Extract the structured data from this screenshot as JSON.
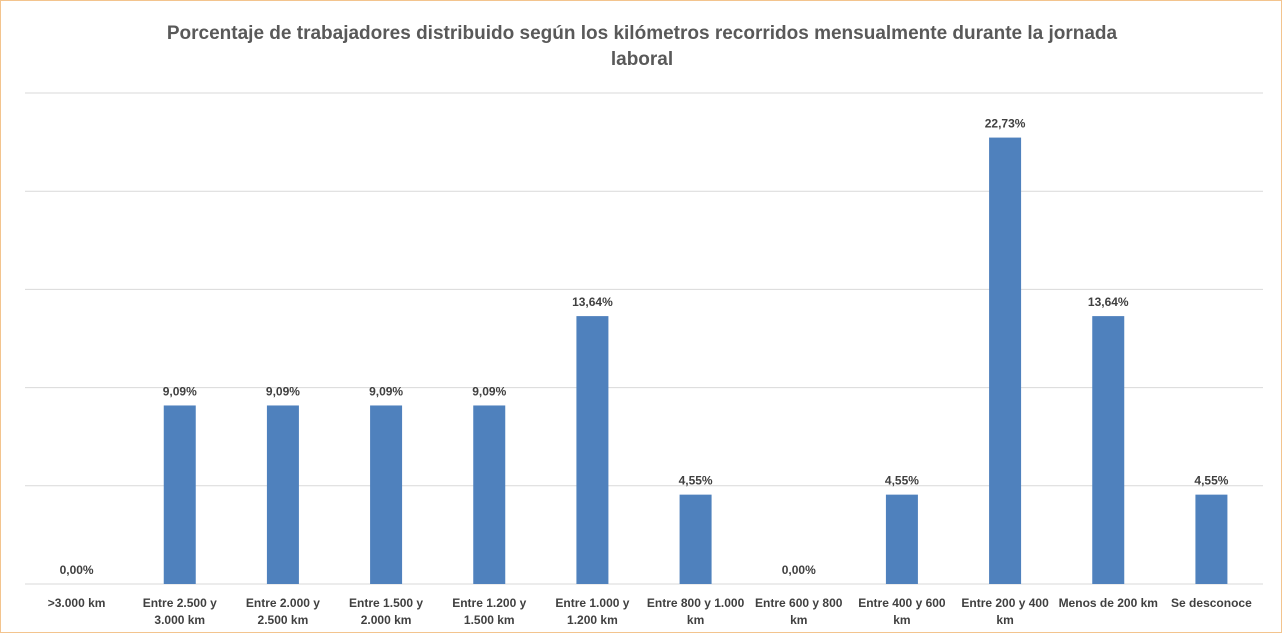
{
  "chart_data": {
    "type": "bar",
    "title": "Porcentaje de trabajadores distribuido según los kilómetros recorridos mensualmente durante la jornada laboral",
    "categories": [
      ">3.000 km",
      "Entre 2.500 y 3.000 km",
      "Entre 2.000 y 2.500 km",
      "Entre 1.500 y 2.000 km",
      "Entre 1.200 y 1.500 km",
      "Entre 1.000 y 1.200 km",
      "Entre 800 y 1.000 km",
      "Entre 600 y 800 km",
      "Entre 400 y 600 km",
      "Entre 200 y 400 km",
      "Menos de 200 km",
      "Se desconoce"
    ],
    "values": [
      0,
      9.09,
      9.09,
      9.09,
      9.09,
      13.64,
      4.55,
      0,
      4.55,
      22.73,
      13.64,
      4.55
    ],
    "value_labels": [
      "0,00%",
      "9,09%",
      "9,09%",
      "9,09%",
      "9,09%",
      "13,64%",
      "4,55%",
      "0,00%",
      "4,55%",
      "22,73%",
      "13,64%",
      "4,55%"
    ],
    "color": "#4f81bd",
    "ylim": [
      0,
      25
    ],
    "yticks": [
      0,
      5,
      10,
      15,
      20,
      25
    ],
    "grid": true
  }
}
